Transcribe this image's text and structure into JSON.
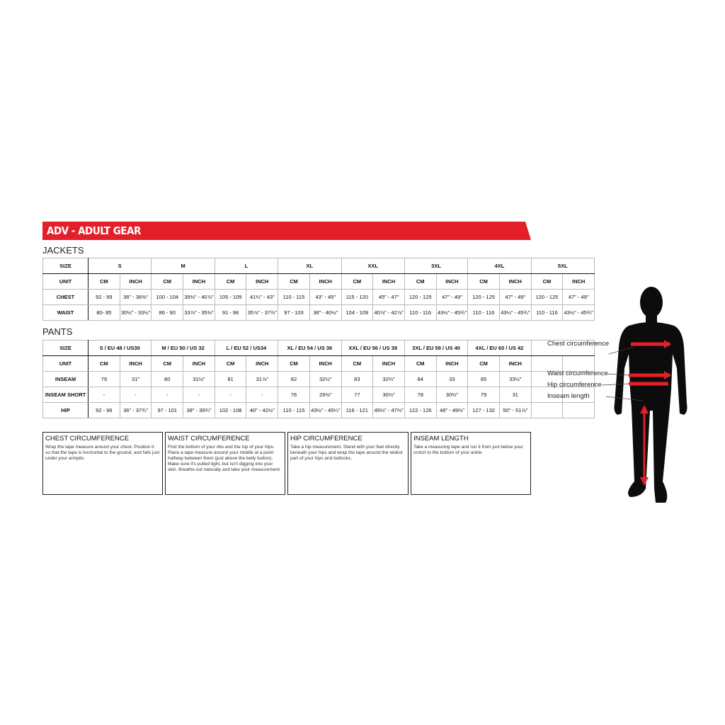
{
  "header": {
    "title": "ADV - ADULT GEAR"
  },
  "jackets": {
    "title": "JACKETS",
    "header": [
      "SIZE",
      "S",
      "M",
      "L",
      "XL",
      "XXL",
      "3XL",
      "4XL",
      "5XL"
    ],
    "rows": [
      [
        "UNIT",
        "CM",
        "INCH",
        "CM",
        "INCH",
        "CM",
        "INCH",
        "CM",
        "INCH",
        "CM",
        "INCH",
        "CM",
        "INCH",
        "CM",
        "INCH",
        "CM",
        "INCH"
      ],
      [
        "CHEST",
        "92 - 99",
        "36″ - 38⅜″",
        "100 - 104",
        "39⅜″ - 40⅞″",
        "105 - 109",
        "41¼″ - 43″",
        "110 - 115",
        "43″ - 45″",
        "115 - 120",
        "45″ - 47″",
        "120 - 125",
        "47″ - 49″",
        "120 - 125",
        "47″ - 49″",
        "120 - 125",
        "47″ - 49″"
      ],
      [
        "WAIST",
        "80- 85",
        "30½″ - 33½″",
        "86 - 90",
        "33⅞″ - 35⅜″",
        "91 - 96",
        "35⅞″ - 37¾″",
        "97 - 103",
        "38″ - 40½″",
        "104 - 109",
        "40⅞″ - 42⅞″",
        "110 - 116",
        "43½″ - 45¾″",
        "110 - 116",
        "43½″ - 45¾″",
        "110 - 116",
        "43½″ - 45¾″"
      ]
    ]
  },
  "pants": {
    "title": "PANTS",
    "header": [
      "SIZE",
      "S / EU 48 / US30",
      "M / EU 50 / US 32",
      "L / EU 52 / US34",
      "XL / EU 54 / US 36",
      "XXL / EU 56 / US 38",
      "3XL / EU 58 / US 40",
      "4XL / EU 60 / US 42"
    ],
    "rows": [
      [
        "UNIT",
        "CM",
        "INCH",
        "CM",
        "INCH",
        "CM",
        "INCH",
        "CM",
        "INCH",
        "CM",
        "INCH",
        "CM",
        "INCH",
        "CM",
        "INCH"
      ],
      [
        "INSEAM",
        "79",
        "31″",
        "80",
        "31½″",
        "81",
        "31⅞″",
        "82",
        "32½″",
        "83",
        "32⅔″",
        "84",
        "33",
        "85",
        "33½″"
      ],
      [
        "INSEAM SHORT",
        "-",
        "-",
        "-",
        "-",
        "-",
        "-",
        "76",
        "29⅜″",
        "77",
        "30⅓″",
        "78",
        "30⅔″",
        "79",
        "31"
      ],
      [
        "HIP",
        "92 - 96",
        "36″ - 37¾″",
        "97 - 101",
        "38″ - 39¾″",
        "102 - 108",
        "40″ - 42½″",
        "110 - 115",
        "43½″ - 45¼″",
        "116 - 121",
        "45⅔″ - 47⅔″",
        "122 - 126",
        "48″ - 49⅔″",
        "127 - 132",
        "50″ - 51⅞″"
      ]
    ]
  },
  "guides": [
    {
      "title": "CHEST CIRCUMFERENCE",
      "text": "Wrap the tape measure around your chest. Position it so that the tape is horizontal to the ground, and falls just under your armpits."
    },
    {
      "title": "WAIST CIRCUMFERENCE",
      "text": "Find the bottom of your ribs and the top of your hips. Place a tape measure around your middle at a point halfway between them (just above the belly button). Make sure it's pulled tight, but isn't digging into your skin. Breathe out naturally and take your measurement."
    },
    {
      "title": "HIP CIRCUMFERENCE",
      "text": "Take a hip measurement. Stand with your feet directly beneath your hips and wrap the tape around the widest part of your hips and buttocks."
    },
    {
      "title": "INSEAM LENGTH",
      "text": "Take a measuring tape and run it from just below your crotch to the bottom of your ankle"
    }
  ],
  "figure": {
    "labels": [
      "Chest circumference",
      "Waist circumference",
      "Hip circumference",
      "Inseam length"
    ]
  }
}
